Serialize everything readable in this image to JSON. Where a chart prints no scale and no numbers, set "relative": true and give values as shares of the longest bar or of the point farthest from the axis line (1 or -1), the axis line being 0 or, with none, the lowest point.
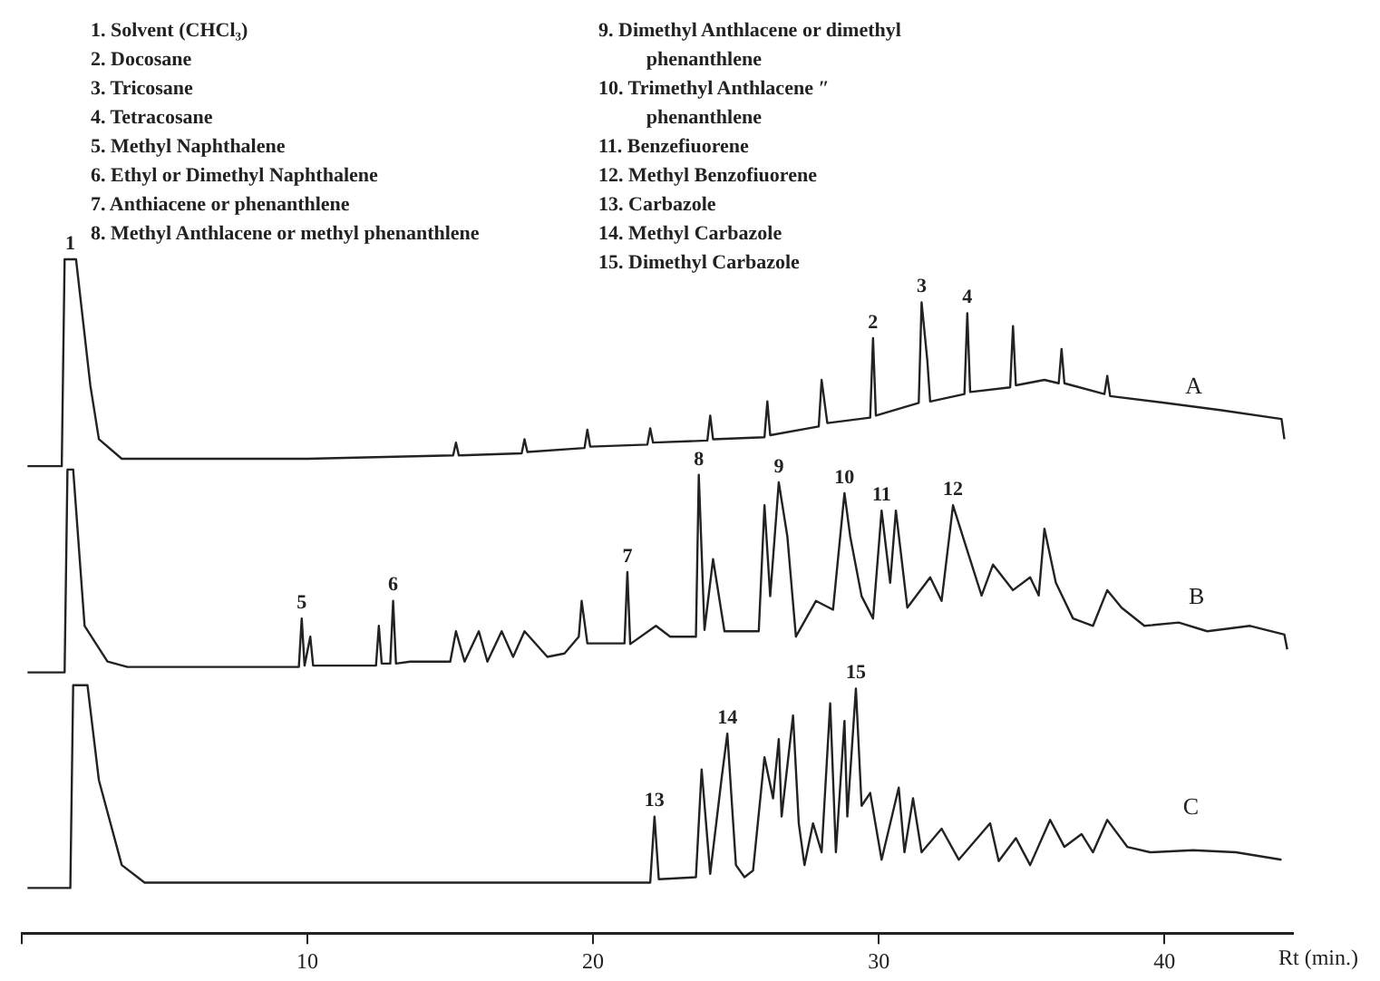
{
  "chart_data": {
    "type": "line",
    "relative": true,
    "xlabel": "Rt (min.)",
    "xlim": [
      0,
      44.5
    ],
    "xticks": [
      {
        "value": 0,
        "label": null
      },
      10,
      20,
      30,
      40
    ],
    "marker": "none",
    "line_style": "solid",
    "series": [
      {
        "name": "A",
        "color": "#222222",
        "x": [
          0.2,
          1.4,
          1.5,
          1.9,
          2.4,
          2.7,
          3.5,
          10,
          15.1,
          15.2,
          15.3,
          17.5,
          17.6,
          17.7,
          19.7,
          19.8,
          19.9,
          21.9,
          22.0,
          22.1,
          24.0,
          24.1,
          24.2,
          26.0,
          26.1,
          26.2,
          27.9,
          28.0,
          28.2,
          29.7,
          29.8,
          29.9,
          31.4,
          31.5,
          31.7,
          31.8,
          33.0,
          33.1,
          33.2,
          34.6,
          34.7,
          34.8,
          35.8,
          36.3,
          36.4,
          36.5,
          37.9,
          38.0,
          38.1,
          40,
          42,
          44.1,
          44.2
        ],
        "values": [
          0.693,
          0.693,
          1.0,
          1.0,
          0.813,
          0.733,
          0.704,
          0.704,
          0.709,
          0.728,
          0.709,
          0.712,
          0.733,
          0.714,
          0.72,
          0.747,
          0.722,
          0.725,
          0.749,
          0.728,
          0.731,
          0.768,
          0.733,
          0.736,
          0.789,
          0.739,
          0.752,
          0.821,
          0.757,
          0.765,
          0.883,
          0.768,
          0.787,
          0.936,
          0.85,
          0.789,
          0.8,
          0.92,
          0.803,
          0.81,
          0.901,
          0.813,
          0.821,
          0.816,
          0.867,
          0.816,
          0.8,
          0.827,
          0.797,
          0.787,
          0.776,
          0.763,
          0.733
        ]
      },
      {
        "name": "B",
        "color": "#222222",
        "x": [
          0.2,
          1.5,
          1.6,
          1.8,
          2.2,
          3.0,
          3.7,
          9.7,
          9.8,
          9.9,
          10.1,
          10.2,
          10.3,
          12.4,
          12.5,
          12.6,
          12.9,
          13.0,
          13.1,
          13.6,
          15.0,
          15.2,
          15.5,
          16.0,
          16.3,
          16.8,
          17.2,
          17.6,
          18.4,
          19.0,
          19.5,
          19.6,
          19.8,
          20.5,
          21.1,
          21.2,
          21.3,
          22.2,
          22.7,
          23.6,
          23.7,
          23.9,
          24.2,
          24.6,
          25.8,
          26.0,
          26.2,
          26.5,
          26.8,
          27.1,
          27.8,
          28.4,
          28.8,
          29.0,
          29.4,
          29.8,
          30.1,
          30.4,
          30.6,
          31.0,
          31.8,
          32.2,
          32.6,
          33.0,
          33.6,
          34.0,
          34.7,
          35.3,
          35.6,
          35.8,
          36.2,
          36.8,
          37.5,
          38.0,
          38.5,
          39.3,
          40.5,
          41.5,
          43.0,
          44.2,
          44.3
        ],
        "values": [
          0.387,
          0.387,
          0.688,
          0.688,
          0.456,
          0.403,
          0.395,
          0.395,
          0.467,
          0.397,
          0.44,
          0.397,
          0.397,
          0.397,
          0.456,
          0.4,
          0.4,
          0.493,
          0.4,
          0.403,
          0.403,
          0.448,
          0.403,
          0.448,
          0.403,
          0.448,
          0.41,
          0.448,
          0.41,
          0.415,
          0.44,
          0.493,
          0.43,
          0.43,
          0.43,
          0.536,
          0.429,
          0.456,
          0.44,
          0.44,
          0.68,
          0.45,
          0.555,
          0.448,
          0.448,
          0.635,
          0.5,
          0.669,
          0.589,
          0.44,
          0.493,
          0.48,
          0.653,
          0.589,
          0.5,
          0.467,
          0.627,
          0.52,
          0.627,
          0.483,
          0.528,
          0.493,
          0.635,
          0.581,
          0.501,
          0.547,
          0.509,
          0.528,
          0.501,
          0.6,
          0.52,
          0.467,
          0.456,
          0.509,
          0.483,
          0.456,
          0.461,
          0.448,
          0.456,
          0.443,
          0.421
        ]
      },
      {
        "name": "C",
        "color": "#222222",
        "x": [
          0.2,
          1.7,
          1.8,
          2.3,
          2.7,
          3.5,
          4.3,
          10,
          22.0,
          22.15,
          22.3,
          23.6,
          23.8,
          24.1,
          24.5,
          24.7,
          25.0,
          25.3,
          25.6,
          26.0,
          26.3,
          26.5,
          26.6,
          27.0,
          27.2,
          27.4,
          27.7,
          28.0,
          28.3,
          28.5,
          28.8,
          28.9,
          29.2,
          29.4,
          29.7,
          30.1,
          30.7,
          30.9,
          31.2,
          31.5,
          32.2,
          32.8,
          33.9,
          34.2,
          34.8,
          35.3,
          36.0,
          36.5,
          37.1,
          37.5,
          38.0,
          38.7,
          39.5,
          41,
          42.5,
          44.1
        ],
        "values": [
          0.067,
          0.067,
          0.368,
          0.368,
          0.227,
          0.101,
          0.075,
          0.075,
          0.075,
          0.173,
          0.08,
          0.083,
          0.243,
          0.088,
          0.23,
          0.296,
          0.101,
          0.083,
          0.093,
          0.261,
          0.2,
          0.288,
          0.173,
          0.323,
          0.163,
          0.101,
          0.163,
          0.12,
          0.341,
          0.12,
          0.315,
          0.173,
          0.363,
          0.189,
          0.208,
          0.109,
          0.216,
          0.12,
          0.2,
          0.12,
          0.155,
          0.109,
          0.163,
          0.107,
          0.141,
          0.101,
          0.168,
          0.128,
          0.147,
          0.12,
          0.168,
          0.128,
          0.12,
          0.123,
          0.12,
          0.109
        ]
      }
    ],
    "annotations": [
      "1. Solvent (CHCl₃)",
      "2. Docosane",
      "3. Tricosane",
      "4. Tetracosane",
      "5. Methyl Naphthalene",
      "6. Ethyl or Dimethyl Naphthalene",
      "7. Anthiacene or phenanthlene",
      "8. Methyl Anthlacene or methyl phenanthlene",
      "9. Dimethyl Anthlacene or dimethyl phenanthlene",
      "10. Trimethyl Anthlacene ″ phenanthlene",
      "11. Benzefiuorene",
      "12. Methyl Benzofiuorene",
      "13. Carbazole",
      "14. Methyl Carbazole",
      "15. Dimethyl Carbazole",
      {
        "text": "1",
        "x": 1.7,
        "y": 1.0
      },
      {
        "text": "2",
        "x": 29.8,
        "y": 0.883
      },
      {
        "text": "3",
        "x": 31.5,
        "y": 0.936
      },
      {
        "text": "4",
        "x": 33.1,
        "y": 0.92
      },
      {
        "text": "5",
        "x": 9.8,
        "y": 0.467
      },
      {
        "text": "6",
        "x": 13.0,
        "y": 0.493
      },
      {
        "text": "7",
        "x": 21.2,
        "y": 0.536
      },
      {
        "text": "8",
        "x": 23.7,
        "y": 0.68
      },
      {
        "text": "9",
        "x": 26.5,
        "y": 0.669
      },
      {
        "text": "10",
        "x": 28.8,
        "y": 0.653
      },
      {
        "text": "11",
        "x": 30.1,
        "y": 0.627
      },
      {
        "text": "12",
        "x": 32.6,
        "y": 0.635
      },
      {
        "text": "13",
        "x": 22.15,
        "y": 0.173
      },
      {
        "text": "14",
        "x": 24.7,
        "y": 0.296
      },
      {
        "text": "15",
        "x": 29.2,
        "y": 0.363
      }
    ]
  }
}
